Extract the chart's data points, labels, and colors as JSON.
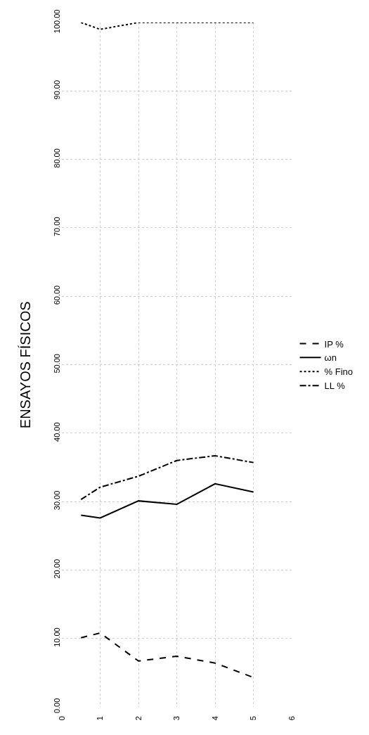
{
  "chart_data": {
    "type": "line",
    "title": "ENSAYOS FÍSICOS",
    "x": [
      0.5,
      1,
      2,
      3,
      4,
      5
    ],
    "series": [
      {
        "name": "IP %",
        "color": "#000000",
        "line_style": "dashed",
        "values": [
          10.1,
          10.8,
          6.7,
          7.4,
          6.4,
          4.3
        ]
      },
      {
        "name": "ωn",
        "color": "#000000",
        "line_style": "solid",
        "values": [
          28.0,
          27.6,
          30.1,
          29.6,
          32.6,
          31.4
        ]
      },
      {
        "name": "% Fino",
        "color": "#000000",
        "line_style": "dotted",
        "values": [
          100,
          99,
          100,
          100,
          100,
          100
        ]
      },
      {
        "name": "LL %",
        "color": "#000000",
        "line_style": "dashdot",
        "values": [
          30.3,
          32.1,
          33.7,
          36.0,
          36.7,
          35.7
        ]
      }
    ],
    "xlim": [
      0,
      6
    ],
    "xticks": [
      0,
      1,
      2,
      3,
      4,
      5,
      6
    ],
    "ylim": [
      0,
      100
    ],
    "yticks": [
      {
        "value": 0,
        "label": "0.00"
      },
      {
        "value": 10,
        "label": "10.00"
      },
      {
        "value": 20,
        "label": "20.00"
      },
      {
        "value": 30,
        "label": "30.00"
      },
      {
        "value": 40,
        "label": "40.00"
      },
      {
        "value": 50,
        "label": "50.00"
      },
      {
        "value": 60,
        "label": "60.00"
      },
      {
        "value": 70,
        "label": "70.00"
      },
      {
        "value": 80,
        "label": "80.00"
      },
      {
        "value": 90,
        "label": "90.00"
      },
      {
        "value": 100,
        "label": "100.00"
      }
    ],
    "grid": true,
    "legend": "right",
    "marker": "none"
  }
}
